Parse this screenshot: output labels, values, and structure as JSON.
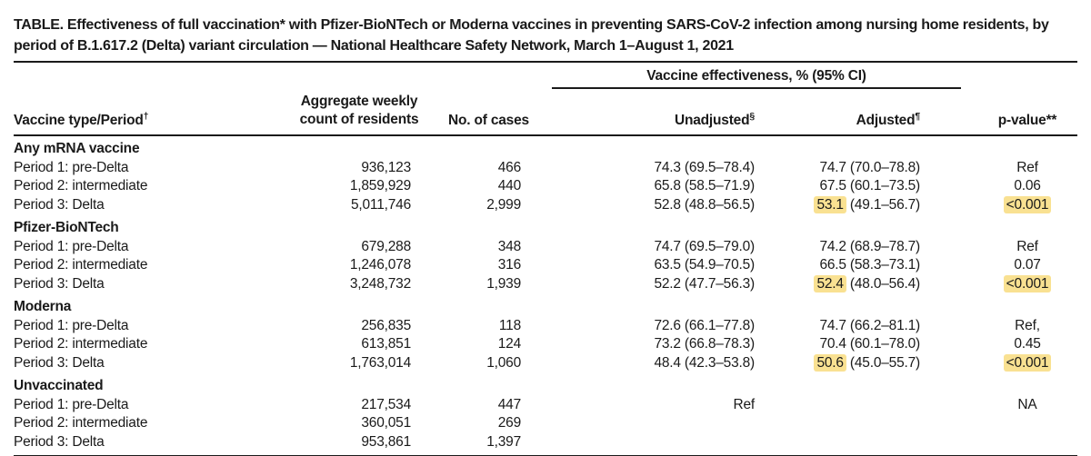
{
  "colors": {
    "highlight": "#F9E192",
    "text": "#1a1a1a"
  },
  "title": "TABLE. Effectiveness of full vaccination* with Pfizer-BioNTech or Moderna vaccines in preventing SARS-CoV-2 infection among nursing home residents, by period of B.1.617.2 (Delta) variant circulation — National Healthcare Safety Network, March 1–August 1, 2021",
  "header": {
    "col1": {
      "text": "Vaccine type/Period",
      "sup": "†"
    },
    "col2": "Aggregate weekly count of residents",
    "col3": "No. of cases",
    "spanner": "Vaccine effectiveness, % (95% CI)",
    "col4": {
      "text": "Unadjusted",
      "sup": "§"
    },
    "col5": {
      "text": "Adjusted",
      "sup": "¶"
    },
    "col6": "p-value**"
  },
  "table": {
    "groups": [
      {
        "name": "Any mRNA vaccine",
        "rows": [
          {
            "period": "Period 1: pre-Delta",
            "residents": "936,123",
            "cases": "466",
            "unadjusted": "74.3 (69.5–78.4)",
            "adj_value": "74.7",
            "adj_ci": "(70.0–78.8)",
            "p": "Ref",
            "adj_hl": false,
            "p_hl": false
          },
          {
            "period": "Period 2: intermediate",
            "residents": "1,859,929",
            "cases": "440",
            "unadjusted": "65.8 (58.5–71.9)",
            "adj_value": "67.5",
            "adj_ci": "(60.1–73.5)",
            "p": "0.06",
            "adj_hl": false,
            "p_hl": false
          },
          {
            "period": "Period 3: Delta",
            "residents": "5,011,746",
            "cases": "2,999",
            "unadjusted": "52.8 (48.8–56.5)",
            "adj_value": "53.1",
            "adj_ci": "(49.1–56.7)",
            "p": "<0.001",
            "adj_hl": true,
            "p_hl": true
          }
        ]
      },
      {
        "name": "Pfizer-BioNTech",
        "rows": [
          {
            "period": "Period 1: pre-Delta",
            "residents": "679,288",
            "cases": "348",
            "unadjusted": "74.7 (69.5–79.0)",
            "adj_value": "74.2",
            "adj_ci": "(68.9–78.7)",
            "p": "Ref",
            "adj_hl": false,
            "p_hl": false
          },
          {
            "period": "Period 2: intermediate",
            "residents": "1,246,078",
            "cases": "316",
            "unadjusted": "63.5 (54.9–70.5)",
            "adj_value": "66.5",
            "adj_ci": "(58.3–73.1)",
            "p": "0.07",
            "adj_hl": false,
            "p_hl": false
          },
          {
            "period": "Period 3: Delta",
            "residents": "3,248,732",
            "cases": "1,939",
            "unadjusted": "52.2 (47.7–56.3)",
            "adj_value": "52.4",
            "adj_ci": "(48.0–56.4)",
            "p": "<0.001",
            "adj_hl": true,
            "p_hl": true
          }
        ]
      },
      {
        "name": "Moderna",
        "rows": [
          {
            "period": "Period 1: pre-Delta",
            "residents": "256,835",
            "cases": "118",
            "unadjusted": "72.6 (66.1–77.8)",
            "adj_value": "74.7",
            "adj_ci": "(66.2–81.1)",
            "p": "Ref,",
            "adj_hl": false,
            "p_hl": false
          },
          {
            "period": "Period 2: intermediate",
            "residents": "613,851",
            "cases": "124",
            "unadjusted": "73.2 (66.8–78.3)",
            "adj_value": "70.4",
            "adj_ci": "(60.1–78.0)",
            "p": "0.45",
            "adj_hl": false,
            "p_hl": false
          },
          {
            "period": "Period 3: Delta",
            "residents": "1,763,014",
            "cases": "1,060",
            "unadjusted": "48.4 (42.3–53.8)",
            "adj_value": "50.6",
            "adj_ci": "(45.0–55.7)",
            "p": "<0.001",
            "adj_hl": true,
            "p_hl": true
          }
        ]
      },
      {
        "name": "Unvaccinated",
        "rows": [
          {
            "period": "Period 1: pre-Delta",
            "residents": "217,534",
            "cases": "447",
            "unadjusted": "Ref",
            "adj_value": "",
            "adj_ci": "",
            "p": "NA",
            "adj_hl": false,
            "p_hl": false
          },
          {
            "period": "Period 2: intermediate",
            "residents": "360,051",
            "cases": "269",
            "unadjusted": "",
            "adj_value": "",
            "adj_ci": "",
            "p": "",
            "adj_hl": false,
            "p_hl": false
          },
          {
            "period": "Period 3: Delta",
            "residents": "953,861",
            "cases": "1,397",
            "unadjusted": "",
            "adj_value": "",
            "adj_ci": "",
            "p": "",
            "adj_hl": false,
            "p_hl": false
          }
        ]
      }
    ]
  }
}
